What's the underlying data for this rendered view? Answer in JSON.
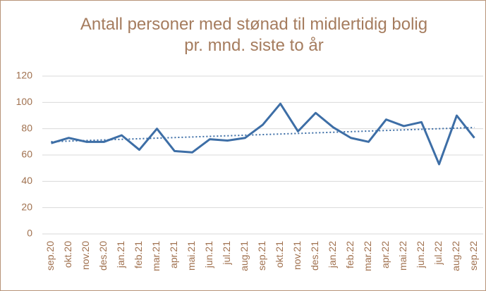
{
  "chart_data": {
    "type": "line",
    "title": "Antall personer med stønad til midlertidig bolig pr. mnd. siste to år",
    "categories": [
      "sep.20",
      "okt.20",
      "nov.20",
      "des.20",
      "jan.21",
      "feb.21",
      "mar.21",
      "apr.21",
      "mai.21",
      "jun.21",
      "jul.21",
      "aug.21",
      "sep.21",
      "okt.21",
      "nov.21",
      "des.21",
      "jan.22",
      "feb.22",
      "mar.22",
      "apr.22",
      "mai.22",
      "jun.22",
      "jul.22",
      "aug.22",
      "sep.22"
    ],
    "values": [
      69,
      73,
      70,
      70,
      75,
      64,
      80,
      63,
      62,
      72,
      71,
      73,
      83,
      99,
      78,
      92,
      81,
      73,
      70,
      87,
      82,
      85,
      53,
      90,
      73
    ],
    "color": "#3d6ea6",
    "trendline": true,
    "ylim": [
      0,
      120
    ],
    "yticks": [
      0,
      20,
      40,
      60,
      80,
      100,
      120
    ],
    "grid": true
  }
}
